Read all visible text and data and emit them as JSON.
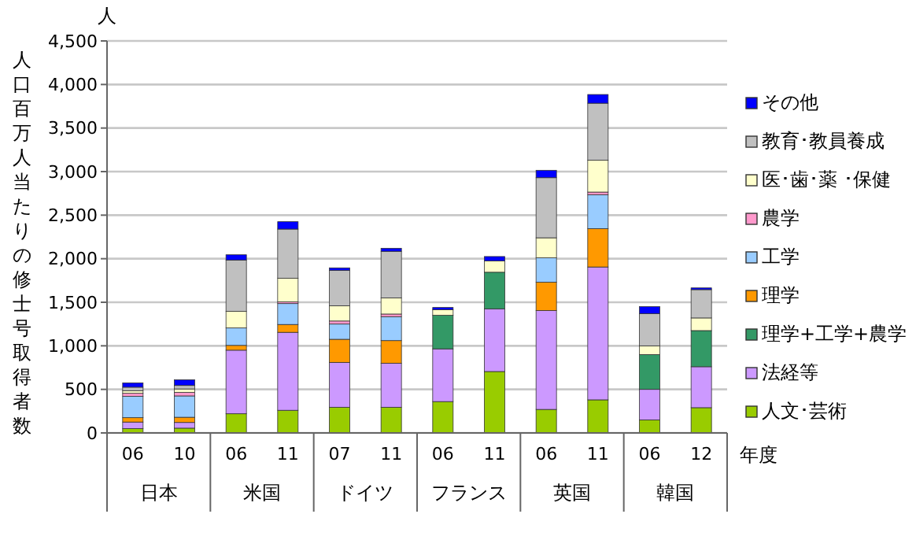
{
  "chart_data": {
    "type": "bar",
    "stacked": true,
    "ylabel": "人口百万人当たりの修士号取得者数",
    "xlabel": "年度",
    "categories": [
      "06",
      "10",
      "06",
      "11",
      "07",
      "11",
      "06",
      "11",
      "06",
      "11",
      "06",
      "12"
    ],
    "annotations": [
      "人",
      "日本",
      "米国",
      "ドイツ",
      "フランス",
      "英国",
      "韓国"
    ],
    "ylim": [
      0,
      4500
    ],
    "yticks": [
      {
        "value": 0,
        "label": "0"
      },
      {
        "value": 500,
        "label": "500"
      },
      {
        "value": 1000,
        "label": "1,000"
      },
      {
        "value": 1500,
        "label": "1,500"
      },
      {
        "value": 2000,
        "label": "2,000"
      },
      {
        "value": 2500,
        "label": "2,500"
      },
      {
        "value": 3000,
        "label": "3,000"
      },
      {
        "value": 3500,
        "label": "3,500"
      },
      {
        "value": 4000,
        "label": "4,000"
      },
      {
        "value": 4500,
        "label": "4,500"
      }
    ],
    "grid": "y",
    "legend": "right",
    "series": [
      {
        "name": "人文･芸術",
        "color": "#99cc00",
        "values": [
          50,
          55,
          220,
          260,
          295,
          295,
          360,
          705,
          270,
          380,
          150,
          290
        ]
      },
      {
        "name": "法経等",
        "color": "#cc99ff",
        "values": [
          75,
          65,
          730,
          895,
          515,
          505,
          605,
          720,
          1135,
          1525,
          350,
          470
        ]
      },
      {
        "name": "理学+工学+農学",
        "color": "#339966",
        "values": [
          null,
          null,
          null,
          null,
          null,
          null,
          385,
          420,
          null,
          null,
          400,
          415
        ]
      },
      {
        "name": "理学",
        "color": "#ff9900",
        "values": [
          50,
          60,
          55,
          90,
          265,
          260,
          null,
          null,
          325,
          440,
          null,
          null
        ]
      },
      {
        "name": "工学",
        "color": "#99ccff",
        "values": [
          245,
          245,
          200,
          240,
          175,
          275,
          null,
          null,
          280,
          390,
          null,
          null
        ]
      },
      {
        "name": "農学",
        "color": "#ff99cc",
        "values": [
          35,
          40,
          null,
          20,
          35,
          30,
          null,
          null,
          null,
          30,
          null,
          null
        ]
      },
      {
        "name": "医･歯･薬 ･保健",
        "color": "#ffffcc",
        "values": [
          30,
          40,
          190,
          270,
          175,
          185,
          65,
          130,
          230,
          365,
          100,
          145
        ]
      },
      {
        "name": "教育･教員養成",
        "color": "#c0c0c0",
        "values": [
          40,
          40,
          590,
          565,
          405,
          535,
          null,
          null,
          690,
          655,
          370,
          325
        ]
      },
      {
        "name": "その他",
        "color": "#0000ff",
        "values": [
          50,
          65,
          60,
          85,
          30,
          35,
          25,
          50,
          85,
          100,
          80,
          20
        ]
      }
    ]
  }
}
